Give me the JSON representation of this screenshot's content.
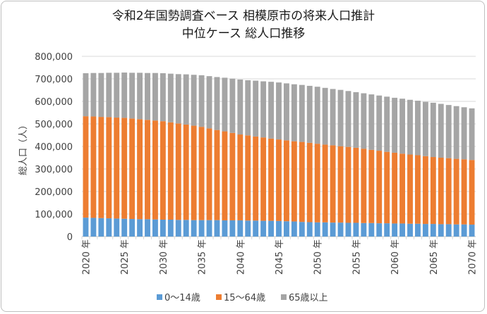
{
  "chart_data": {
    "type": "bar",
    "stacked": true,
    "title": [
      "令和2年国勢調査ベース 相模原市の将来人口推計",
      "中位ケース 総人口推移"
    ],
    "xlabel": "",
    "ylabel": "総人口（人）",
    "ylim": [
      0,
      800000
    ],
    "yticks": [
      "0",
      "100,000",
      "200,000",
      "300,000",
      "400,000",
      "500,000",
      "600,000",
      "700,000",
      "800,000"
    ],
    "x": [
      2020,
      2021,
      2022,
      2023,
      2024,
      2025,
      2026,
      2027,
      2028,
      2029,
      2030,
      2031,
      2032,
      2033,
      2034,
      2035,
      2036,
      2037,
      2038,
      2039,
      2040,
      2041,
      2042,
      2043,
      2044,
      2045,
      2046,
      2047,
      2048,
      2049,
      2050,
      2051,
      2052,
      2053,
      2054,
      2055,
      2056,
      2057,
      2058,
      2059,
      2060,
      2061,
      2062,
      2063,
      2064,
      2065,
      2066,
      2067,
      2068,
      2069,
      2070
    ],
    "xtick_labels": [
      "2020 年",
      "2025 年",
      "2030 年",
      "2035 年",
      "2040 年",
      "2045 年",
      "2050 年",
      "2055 年",
      "2060 年",
      "2065 年",
      "2070 年"
    ],
    "grid": true,
    "legend_position": "bottom",
    "series": [
      {
        "name": "0～14歳",
        "color": "#5b9bd5",
        "values": [
          84000,
          83000,
          82000,
          81000,
          80000,
          79000,
          78000,
          77000,
          77000,
          76000,
          75000,
          75000,
          74000,
          74000,
          73000,
          73000,
          73000,
          73000,
          72000,
          72000,
          72000,
          71000,
          71000,
          70000,
          70000,
          69000,
          68000,
          67000,
          65000,
          64000,
          63000,
          63000,
          62000,
          62000,
          61000,
          61000,
          60000,
          60000,
          59000,
          59000,
          58000,
          58000,
          57000,
          57000,
          56000,
          56000,
          55000,
          55000,
          54000,
          54000,
          53000
        ]
      },
      {
        "name": "15～64歳",
        "color": "#ed7d31",
        "values": [
          450000,
          450000,
          449000,
          449000,
          448000,
          448000,
          446000,
          444000,
          441000,
          439000,
          437000,
          432000,
          428000,
          423000,
          419000,
          414000,
          407000,
          400000,
          395000,
          388000,
          381000,
          378000,
          373000,
          370000,
          365000,
          362000,
          359000,
          356000,
          355000,
          352000,
          349000,
          345000,
          343000,
          339000,
          337000,
          333000,
          330000,
          325000,
          322000,
          317000,
          314000,
          310000,
          307000,
          304000,
          301000,
          297000,
          295000,
          293000,
          291000,
          289000,
          287000
        ]
      },
      {
        "name": "65歳以上",
        "color": "#a5a5a5",
        "values": [
          191000,
          193000,
          195000,
          197000,
          199000,
          201000,
          203000,
          206000,
          208000,
          211000,
          213000,
          216000,
          219000,
          223000,
          226000,
          229000,
          232000,
          235000,
          238000,
          241000,
          244000,
          245000,
          248000,
          249000,
          252000,
          253000,
          253000,
          253000,
          253000,
          253000,
          253000,
          252000,
          250000,
          250000,
          248000,
          247000,
          246000,
          246000,
          245000,
          245000,
          244000,
          244000,
          243000,
          242000,
          241000,
          241000,
          239000,
          236000,
          234000,
          231000,
          229000
        ]
      }
    ]
  }
}
